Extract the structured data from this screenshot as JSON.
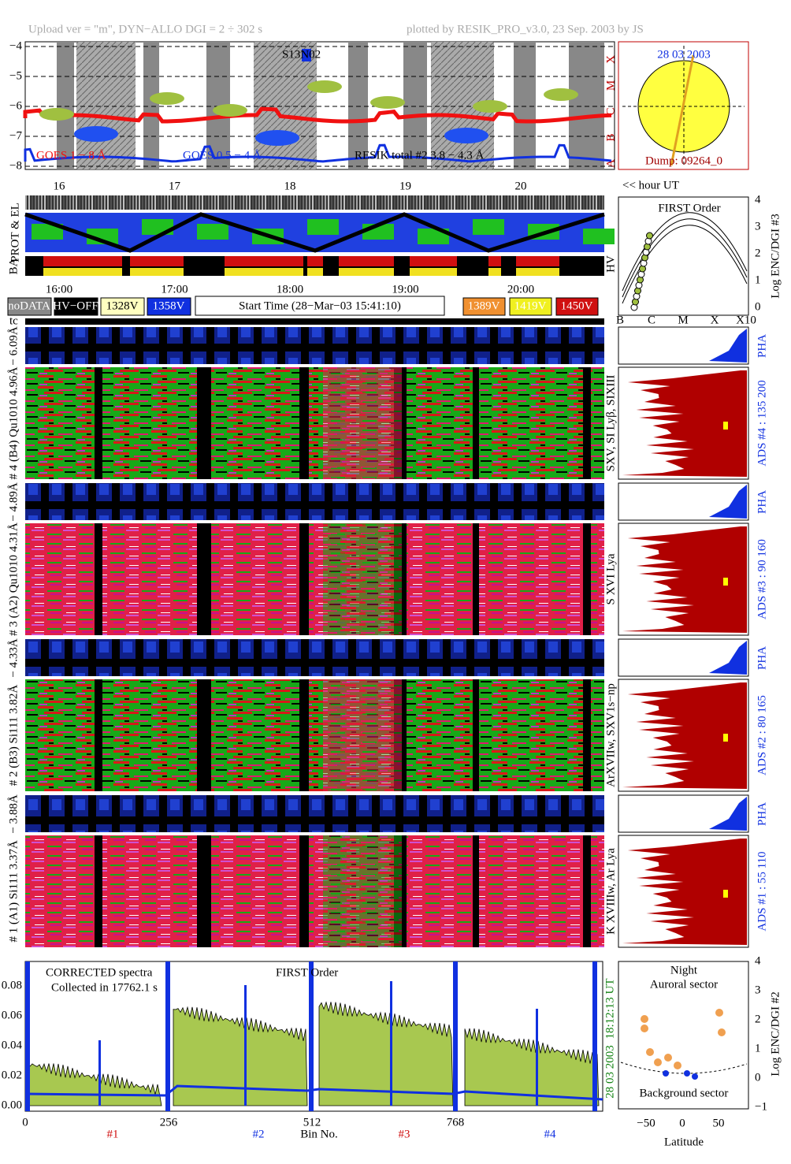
{
  "header": {
    "left": "Upload ver = \"m\", DYN−ALLO DGI =   2 ÷ 302 s",
    "right": "plotted by RESIK_PRO_v3.0, 23 Sep. 2003 by JS"
  },
  "goes": {
    "yticks": [
      "−4",
      "−5",
      "−6",
      "−7",
      "−8"
    ],
    "classes": [
      "X",
      "M",
      "C",
      "B",
      "A"
    ],
    "label_goes_long": "GOES 1 − 8 Å",
    "label_goes_short": "GOES 0.5 − 4 Å",
    "label_resik": "RESIK total #2  3.8 − 4.3 Å",
    "marker": "S13N02",
    "hours": [
      "16",
      "17",
      "18",
      "19",
      "20"
    ]
  },
  "sun": {
    "date": "28 03 2003",
    "dump": "Dump: 09264_0",
    "axis_note": "<< hour UT"
  },
  "status": {
    "prot_label": "PROT & EL",
    "ba_label": "BA",
    "hv_label": "HV",
    "times": [
      "16:00",
      "17:00",
      "18:00",
      "19:00",
      "20:00"
    ],
    "legend_left": [
      "noDATA",
      "HV−OFF",
      "1328V",
      "1358V"
    ],
    "start_time": "Start Time (28−Mar−03 15:41:10)",
    "legend_right": [
      "1389V",
      "1419V",
      "1450V"
    ],
    "tc": "tc"
  },
  "first_order": {
    "title": "FIRST Order",
    "yticks": [
      "0",
      "1",
      "2",
      "3",
      "4"
    ],
    "xticks": [
      "B",
      "C",
      "M",
      "X",
      "X10"
    ],
    "ylabel": "Log ENC/DGI #3"
  },
  "detectors": [
    {
      "pha_range": "− 6.09Å",
      "label": "# 4 (B4) Qu1010 4.96Å",
      "lines": "SXV, SI Lyβ, SIXIII",
      "ads": "ADS #4 :   135 200",
      "pha": "PHA"
    },
    {
      "pha_range": "− 4.89Å",
      "label": "# 3 (A2) Qu1010 4.31Å",
      "lines": "S XVI Lya",
      "ads": "ADS #3 :   90 160",
      "pha": "PHA"
    },
    {
      "pha_range": "− 4.33Å",
      "label": "# 2 (B3) Si111 3.82Å",
      "lines": "ArXVIIw, SXV1s−np",
      "ads": "ADS #2 :   80 165",
      "pha": "PHA"
    },
    {
      "pha_range": "− 3.88Å",
      "label": "# 1 (A1) Si111 3.37Å",
      "lines": "K XVIIIw, Ar Lya",
      "ads": "ADS #1 :   55 110",
      "pha": "PHA"
    }
  ],
  "spectrum": {
    "title": "CORRECTED spectra",
    "collected": "Collected in 17762.1 s",
    "order": "FIRST Order",
    "yticks": [
      "0.00",
      "0.02",
      "0.04",
      "0.06",
      "0.08"
    ],
    "xticks": [
      "0",
      "256",
      "512",
      "768"
    ],
    "xlabel": "Bin No.",
    "detectors": [
      "#1",
      "#2",
      "#3",
      "#4"
    ],
    "time": "18:12:13 UT",
    "date": "28 03 2003"
  },
  "aurora": {
    "night": "Night",
    "auroral": "Auroral sector",
    "background": "Background sector",
    "xlabel": "Latitude",
    "xticks": [
      "−50",
      "0",
      "50"
    ],
    "yticks": [
      "−1",
      "0",
      "1",
      "2",
      "3",
      "4"
    ],
    "ylabel": "Log ENC/DGI #2"
  }
}
